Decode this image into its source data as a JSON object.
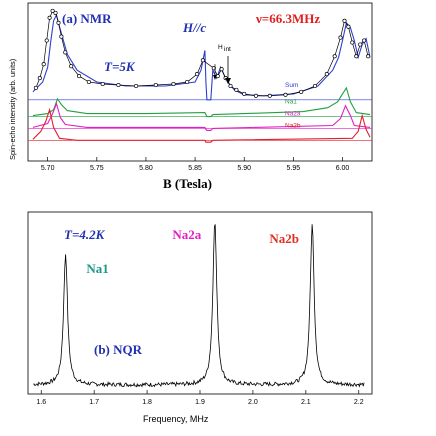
{
  "chart_data": [
    {
      "type": "line",
      "panel_label": "(a)  NMR",
      "temperature_label": "T=5K",
      "field_label": "H//c",
      "frequency_label": "ν=66.3MHz",
      "marker_label": "H",
      "marker_sub": "int",
      "xlabel": "B  (Tesla)",
      "ylabel": "Spin-echo intensity (arb. units)",
      "xlim": [
        5.68,
        6.03
      ],
      "xticks": [
        "5.70",
        "5.75",
        "5.80",
        "5.85",
        "5.90",
        "5.95",
        "6.00"
      ],
      "series": [
        {
          "name": "Sum",
          "color": "#2f3fd0",
          "offset": 0.62,
          "x": [
            5.685,
            5.695,
            5.7,
            5.703,
            5.706,
            5.709,
            5.712,
            5.716,
            5.72,
            5.73,
            5.75,
            5.78,
            5.82,
            5.85,
            5.856,
            5.86,
            5.861,
            5.862,
            5.866,
            5.868,
            5.872,
            5.876,
            5.88,
            5.885,
            5.89,
            5.9,
            5.92,
            5.95,
            5.975,
            5.99,
            5.996,
            6.0,
            6.004,
            6.008,
            6.012,
            6.016,
            6.02,
            6.024,
            6.028
          ],
          "y": [
            0.7,
            0.8,
            0.95,
            1.2,
            1.42,
            1.48,
            1.36,
            1.22,
            1.08,
            0.92,
            0.8,
            0.76,
            0.76,
            0.8,
            0.92,
            1.12,
            0.8,
            0.62,
            0.62,
            0.92,
            0.84,
            0.95,
            0.86,
            0.78,
            0.72,
            0.67,
            0.66,
            0.68,
            0.76,
            0.92,
            1.05,
            1.22,
            1.4,
            1.35,
            1.22,
            1.05,
            1.18,
            1.24,
            1.05
          ]
        },
        {
          "name": "Na1",
          "color": "#22a040",
          "offset": 0.45,
          "x": [
            5.685,
            5.7,
            5.706,
            5.71,
            5.714,
            5.72,
            5.74,
            5.8,
            5.86,
            5.861,
            5.862,
            5.866,
            5.868,
            5.9,
            5.96,
            5.985,
            5.995,
            6.0,
            6.004,
            6.008,
            6.014,
            6.028
          ],
          "y": [
            0.46,
            0.48,
            0.52,
            0.63,
            0.57,
            0.51,
            0.48,
            0.48,
            0.49,
            0.47,
            0.45,
            0.45,
            0.47,
            0.48,
            0.5,
            0.54,
            0.6,
            0.68,
            0.74,
            0.6,
            0.49,
            0.47
          ]
        },
        {
          "name": "Na2a",
          "color": "#e020c0",
          "offset": 0.33,
          "x": [
            5.685,
            5.7,
            5.705,
            5.709,
            5.713,
            5.718,
            5.74,
            5.86,
            5.861,
            5.862,
            5.866,
            5.868,
            5.99,
            5.998,
            6.003,
            6.008,
            6.012,
            6.028
          ],
          "y": [
            0.34,
            0.38,
            0.48,
            0.58,
            0.44,
            0.37,
            0.34,
            0.34,
            0.32,
            0.31,
            0.31,
            0.33,
            0.36,
            0.43,
            0.56,
            0.46,
            0.36,
            0.34
          ]
        },
        {
          "name": "Na2b",
          "color": "#e02030",
          "offset": 0.21,
          "x": [
            5.685,
            5.693,
            5.698,
            5.702,
            5.706,
            5.712,
            5.73,
            5.86,
            5.861,
            5.862,
            5.866,
            5.868,
            6.01,
            6.016,
            6.02,
            6.024,
            6.028
          ],
          "y": [
            0.22,
            0.3,
            0.4,
            0.52,
            0.34,
            0.23,
            0.21,
            0.21,
            0.19,
            0.19,
            0.19,
            0.21,
            0.23,
            0.3,
            0.46,
            0.32,
            0.24
          ]
        }
      ],
      "data_points": {
        "color": "#000000",
        "x": [
          5.688,
          5.692,
          5.696,
          5.699,
          5.702,
          5.705,
          5.708,
          5.711,
          5.714,
          5.718,
          5.724,
          5.732,
          5.742,
          5.756,
          5.772,
          5.79,
          5.81,
          5.828,
          5.842,
          5.852,
          5.858,
          5.869,
          5.873,
          5.877,
          5.881,
          5.886,
          5.892,
          5.9,
          5.912,
          5.926,
          5.942,
          5.958,
          5.972,
          5.984,
          5.992,
          5.998,
          6.002,
          6.006,
          6.01,
          6.014,
          6.018,
          6.022,
          6.026
        ],
        "y": [
          0.74,
          0.84,
          0.98,
          1.22,
          1.45,
          1.52,
          1.5,
          1.4,
          1.26,
          1.1,
          0.96,
          0.86,
          0.8,
          0.78,
          0.77,
          0.76,
          0.77,
          0.78,
          0.8,
          0.88,
          1.02,
          0.94,
          0.86,
          0.93,
          0.84,
          0.76,
          0.72,
          0.68,
          0.66,
          0.66,
          0.67,
          0.7,
          0.76,
          0.88,
          1.06,
          1.25,
          1.42,
          1.36,
          1.2,
          1.06,
          1.18,
          1.22,
          1.06
        ]
      }
    },
    {
      "type": "line",
      "panel_label": "(b) NQR",
      "temperature_label": "T=4.2K",
      "xlabel": "Frequency, MHz",
      "xlim": [
        1.575,
        2.225
      ],
      "xticks": [
        "1.6",
        "1.7",
        "1.8",
        "1.9",
        "2.0",
        "2.1",
        "2.2"
      ],
      "peaks": [
        {
          "name": "Na1",
          "color": "#1a9a8a",
          "center": 1.646,
          "height": 0.72
        },
        {
          "name": "Na2a",
          "color": "#e020c0",
          "center": 1.928,
          "height": 0.9
        },
        {
          "name": "Na2b",
          "color": "#e03020",
          "center": 2.112,
          "height": 0.88
        }
      ],
      "baseline": 0.05,
      "color": "#000000"
    }
  ]
}
